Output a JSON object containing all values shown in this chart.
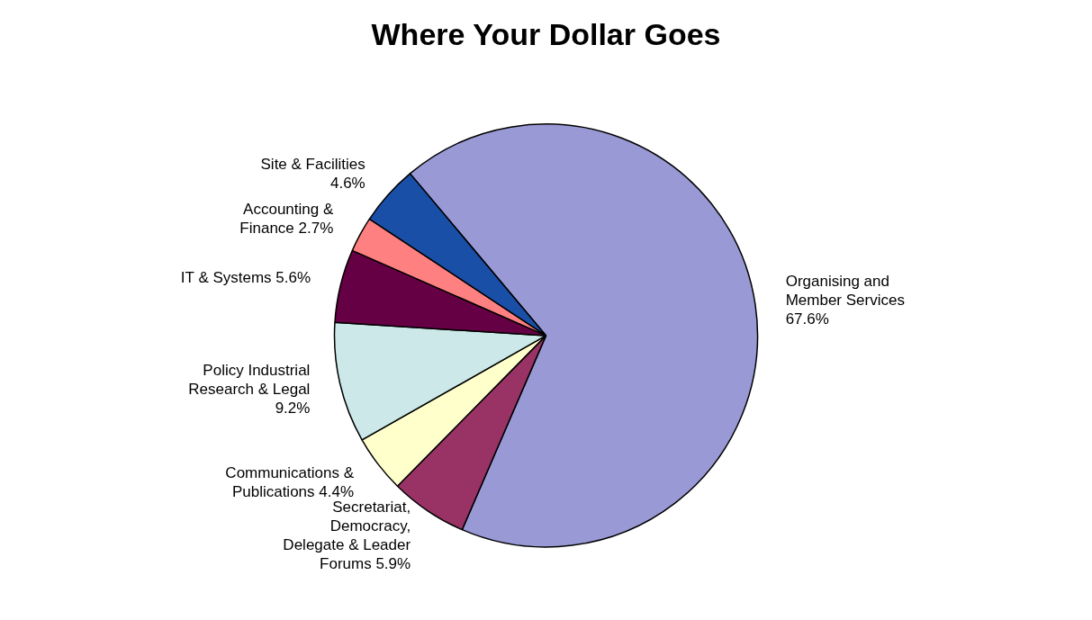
{
  "chart_data": {
    "type": "pie",
    "title": "Where Your Dollar Goes",
    "categories": [
      "Organising and Member Services",
      "Secretariat, Democracy, Delegate & Leader Forums",
      "Communications & Publications",
      "Policy Industrial Research & Legal",
      "IT & Systems",
      "Accounting & Finance",
      "Site & Facilities"
    ],
    "values": [
      67.6,
      5.9,
      4.4,
      9.2,
      5.6,
      2.7,
      4.6
    ],
    "value_labels": [
      "67.6%",
      "5.9%",
      "4.4%",
      "9.2%",
      "5.6%",
      "2.7%",
      "4.6%"
    ],
    "colors": [
      "#9999d6",
      "#993366",
      "#ffffcc",
      "#cce8e8",
      "#660044",
      "#ff8080",
      "#1a4fa8"
    ],
    "legend": false
  }
}
